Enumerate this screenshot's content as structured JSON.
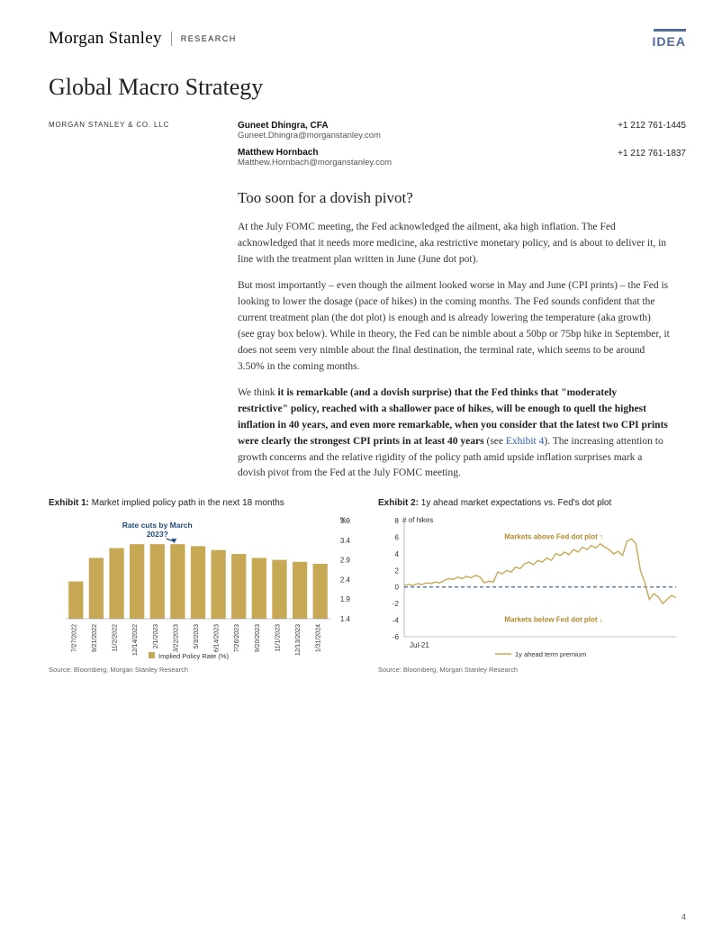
{
  "header": {
    "logo": "Morgan Stanley",
    "research": "RESEARCH",
    "idea": "IDEA"
  },
  "title": "Global Macro Strategy",
  "firm": "MORGAN STANLEY & CO. LLC",
  "authors": [
    {
      "name": "Guneet Dhingra, CFA",
      "email": "Guneet.Dhingra@morganstanley.com",
      "phone": "+1 212 761-1445"
    },
    {
      "name": "Matthew Hornbach",
      "email": "Matthew.Hornbach@morganstanley.com",
      "phone": "+1 212 761-1837"
    }
  ],
  "section_title": "Too soon for a dovish pivot?",
  "para1": "At the July FOMC meeting, the Fed acknowledged the ailment, aka high inflation. The Fed acknowledged that it needs more medicine, aka restrictive monetary policy, and is about to deliver it, in line with the treatment plan written in June (June dot pot).",
  "para2": "But most importantly – even though the ailment looked worse in May and June (CPI prints) – the Fed is looking to lower the dosage (pace of hikes) in the coming months. The Fed sounds confident that the current treatment plan (the dot plot) is enough and is already lowering the temperature (aka growth) (see gray box below). While in theory, the Fed can be nimble about a 50bp or 75bp hike in September, it does not seem very nimble about the final destination, the terminal rate, which seems to be around 3.50% in the coming months.",
  "para3_prefix": "We think ",
  "para3_bold": "it is remarkable (and a dovish surprise) that the Fed thinks that \"moderately restrictive\" policy, reached with a shallower pace of hikes, will be enough to quell the highest inflation in 40 years, and even more remarkable, when you consider that the latest two CPI prints were clearly the strongest CPI prints in at least 40 years",
  "para3_see": " (see ",
  "para3_link": "Exhibit 4",
  "para3_suffix": "). The increasing attention to growth concerns and the relative rigidity of the policy path amid upside inflation surprises mark a dovish pivot from the Fed at the July FOMC meeting.",
  "exhibit1": {
    "label": "Exhibit 1:",
    "title": "Market implied policy path in the next 18 months",
    "annotation": "Rate cuts by March 2023?",
    "y_unit": "%",
    "ylim": [
      1.4,
      3.9
    ],
    "yticks": [
      1.4,
      1.9,
      2.4,
      2.9,
      3.4,
      3.9
    ],
    "categories": [
      "7/27/2022",
      "9/21/2022",
      "11/2/2022",
      "12/14/2022",
      "2/1/2023",
      "3/22/2023",
      "5/3/2023",
      "6/14/2023",
      "7/26/2023",
      "9/20/2023",
      "11/1/2023",
      "12/13/2023",
      "1/31/2024"
    ],
    "values": [
      2.35,
      2.95,
      3.2,
      3.3,
      3.3,
      3.3,
      3.25,
      3.15,
      3.05,
      2.95,
      2.9,
      2.85,
      2.8
    ],
    "bar_color": "#c7a955",
    "annotation_color": "#1f4a7a",
    "axis_color": "#888888",
    "text_color": "#333333",
    "legend": "Implied Policy Rate (%)",
    "source": "Source: Bloomberg, Morgan Stanley Research"
  },
  "exhibit2": {
    "label": "Exhibit 2:",
    "title": "1y ahead market expectations vs. Fed's dot plot",
    "y_unit": "# of hikes",
    "ylim": [
      -6,
      8
    ],
    "yticks": [
      -6,
      -4,
      -2,
      0,
      2,
      4,
      6,
      8
    ],
    "x_start_label": "Jul-21",
    "line_color": "#c7a955",
    "zero_line_color": "#3a6aa8",
    "text_color": "#333333",
    "annotation_above": "Markets above Fed dot plot ↑",
    "annotation_below": "Markets below Fed dot plot ↓",
    "annotation_color": "#b08a2e",
    "legend": "1y ahead term premium",
    "data": [
      0.2,
      0.3,
      0.2,
      0.4,
      0.3,
      0.5,
      0.4,
      0.6,
      0.5,
      0.8,
      1.0,
      0.9,
      1.2,
      1.0,
      1.3,
      1.1,
      1.4,
      1.2,
      0.5,
      0.7,
      0.6,
      1.8,
      1.6,
      2.0,
      1.8,
      2.4,
      2.2,
      2.8,
      3.0,
      2.7,
      3.2,
      3.0,
      3.5,
      3.2,
      4.0,
      3.8,
      4.2,
      3.9,
      4.5,
      4.2,
      4.8,
      4.5,
      5.0,
      4.7,
      5.2,
      4.8,
      4.5,
      4.0,
      4.3,
      3.8,
      5.5,
      5.8,
      5.2,
      2.0,
      0.5,
      -1.5,
      -0.8,
      -1.2,
      -2.0,
      -1.5,
      -1.0,
      -1.3
    ],
    "source": "Source: Bloomberg, Morgan Stanley Research"
  },
  "page_number": "4"
}
